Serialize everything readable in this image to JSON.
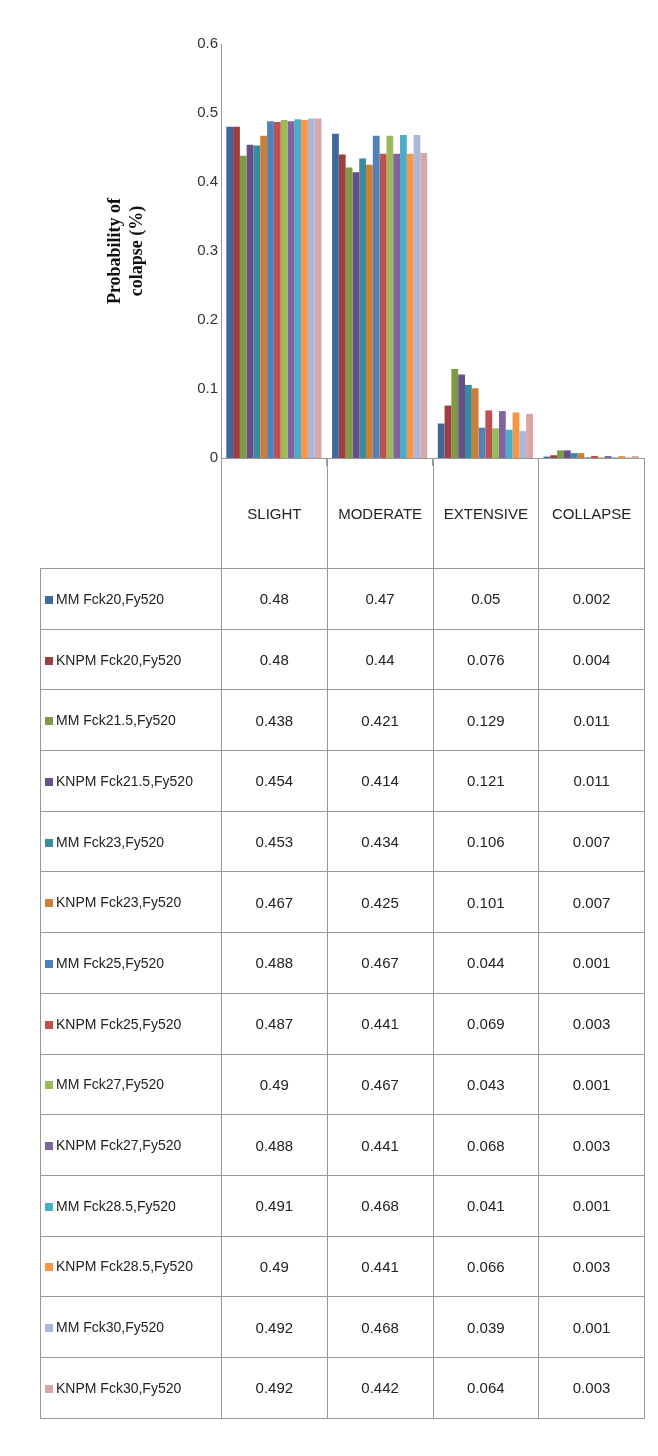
{
  "chart_data": {
    "type": "bar",
    "ylabel": "Probability of colapse (%)",
    "categories": [
      "SLIGHT",
      "MODERATE",
      "EXTENSIVE",
      "COLLAPSE"
    ],
    "ylim": [
      0,
      0.6
    ],
    "yticks": [
      0,
      0.1,
      0.2,
      0.3,
      0.4,
      0.5,
      0.6
    ],
    "legend": "bottom",
    "data_labels": true,
    "series": [
      {
        "name": "MM Fck20,Fy520",
        "color": "#41689b",
        "values": [
          0.48,
          0.47,
          0.05,
          0.002
        ]
      },
      {
        "name": "KNPM Fck20,Fy520",
        "color": "#9c3f3d",
        "values": [
          0.48,
          0.44,
          0.076,
          0.004
        ]
      },
      {
        "name": "MM Fck21.5,Fy520",
        "color": "#7e9a47",
        "values": [
          0.438,
          0.421,
          0.129,
          0.011
        ]
      },
      {
        "name": "KNPM Fck21.5,Fy520",
        "color": "#674f8a",
        "values": [
          0.454,
          0.414,
          0.121,
          0.011
        ]
      },
      {
        "name": "MM Fck23,Fy520",
        "color": "#3a8aa0",
        "values": [
          0.453,
          0.434,
          0.106,
          0.007
        ]
      },
      {
        "name": "KNPM Fck23,Fy520",
        "color": "#cf7e36",
        "values": [
          0.467,
          0.425,
          0.101,
          0.007
        ]
      },
      {
        "name": "MM Fck25,Fy520",
        "color": "#4f81bd",
        "values": [
          0.488,
          0.467,
          0.044,
          0.001
        ]
      },
      {
        "name": "KNPM Fck25,Fy520",
        "color": "#c0504d",
        "values": [
          0.487,
          0.441,
          0.069,
          0.003
        ]
      },
      {
        "name": "MM Fck27,Fy520",
        "color": "#9bbb59",
        "values": [
          0.49,
          0.467,
          0.043,
          0.001
        ]
      },
      {
        "name": "KNPM Fck27,Fy520",
        "color": "#8064a2",
        "values": [
          0.488,
          0.441,
          0.068,
          0.003
        ]
      },
      {
        "name": "MM Fck28.5,Fy520",
        "color": "#4bacc6",
        "values": [
          0.491,
          0.468,
          0.041,
          0.001
        ]
      },
      {
        "name": "KNPM Fck28.5,Fy520",
        "color": "#f79646",
        "values": [
          0.49,
          0.441,
          0.066,
          0.003
        ]
      },
      {
        "name": "MM Fck30,Fy520",
        "color": "#a9b8d8",
        "values": [
          0.492,
          0.468,
          0.039,
          0.001
        ]
      },
      {
        "name": "KNPM Fck30,Fy520",
        "color": "#d9a6a6",
        "values": [
          0.492,
          0.442,
          0.064,
          0.003
        ]
      }
    ]
  }
}
